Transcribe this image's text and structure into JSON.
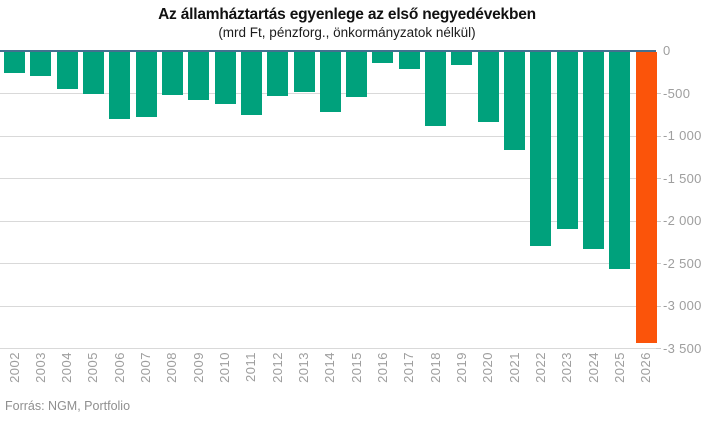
{
  "chart": {
    "title": "Az államháztartás egyenlege az első negyedévekben",
    "subtitle": "(mrd Ft, pénzforg., önkormányzatok nélkül)",
    "source": "Forrás: NGM, Portfolio"
  },
  "chart_data": {
    "type": "bar",
    "title": "Az államháztartás egyenlege az első negyedévekben",
    "subtitle": "(mrd Ft, pénzforg., önkormányzatok nélkül)",
    "xlabel": "",
    "ylabel": "mrd Ft",
    "categories": [
      "2002",
      "2003",
      "2004",
      "2005",
      "2006",
      "2007",
      "2008",
      "2009",
      "2010",
      "2011",
      "2012",
      "2013",
      "2014",
      "2015",
      "2016",
      "2017",
      "2018",
      "2019",
      "2020",
      "2021",
      "2022",
      "2023",
      "2024",
      "2025",
      "2026"
    ],
    "values": [
      -255,
      -290,
      -445,
      -495,
      -790,
      -765,
      -515,
      -575,
      -620,
      -740,
      -525,
      -480,
      -710,
      -540,
      -135,
      -205,
      -880,
      -155,
      -830,
      -1155,
      -2290,
      -2090,
      -2320,
      -2550,
      -3420
    ],
    "ylim": [
      -3500,
      0
    ],
    "yticks": [
      0,
      -500,
      -1000,
      -1500,
      -2000,
      -2500,
      -3000,
      -3500
    ],
    "ytick_labels": [
      "0",
      "-500",
      "-1 000",
      "-1 500",
      "-2 000",
      "-2 500",
      "-3 000",
      "-3 500"
    ],
    "grid": "horizontal",
    "legend": "none",
    "colors": {
      "bar_default": "#00a17c",
      "bar_highlight": "#fb540a",
      "highlight_category": "2026",
      "zero_line": "#44708f",
      "gridline": "#d9d9d9",
      "axis_text": "#9e9e9e",
      "title_text": "#111111",
      "source_text": "#8f8f8f"
    }
  }
}
